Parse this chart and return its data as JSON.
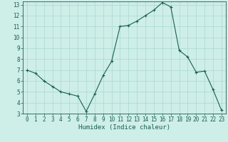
{
  "x": [
    0,
    1,
    2,
    3,
    4,
    5,
    6,
    7,
    8,
    9,
    10,
    11,
    12,
    13,
    14,
    15,
    16,
    17,
    18,
    19,
    20,
    21,
    22,
    23
  ],
  "y": [
    7.0,
    6.7,
    6.0,
    5.5,
    5.0,
    4.8,
    4.6,
    3.2,
    4.8,
    6.5,
    7.8,
    11.0,
    11.1,
    11.5,
    12.0,
    12.5,
    13.2,
    12.8,
    8.8,
    8.2,
    6.8,
    6.9,
    5.2,
    3.3
  ],
  "xlabel": "Humidex (Indice chaleur)",
  "xlim": [
    -0.5,
    23.5
  ],
  "ylim": [
    3,
    13.3
  ],
  "yticks": [
    3,
    4,
    5,
    6,
    7,
    8,
    9,
    10,
    11,
    12,
    13
  ],
  "xticks": [
    0,
    1,
    2,
    3,
    4,
    5,
    6,
    7,
    8,
    9,
    10,
    11,
    12,
    13,
    14,
    15,
    16,
    17,
    18,
    19,
    20,
    21,
    22,
    23
  ],
  "bg_color": "#ceeee8",
  "line_color": "#1a5e50",
  "grid_color": "#aad8d0",
  "marker": "+",
  "linewidth": 0.8,
  "markersize": 3.5,
  "tick_labelsize": 5.5,
  "xlabel_fontsize": 6.5
}
